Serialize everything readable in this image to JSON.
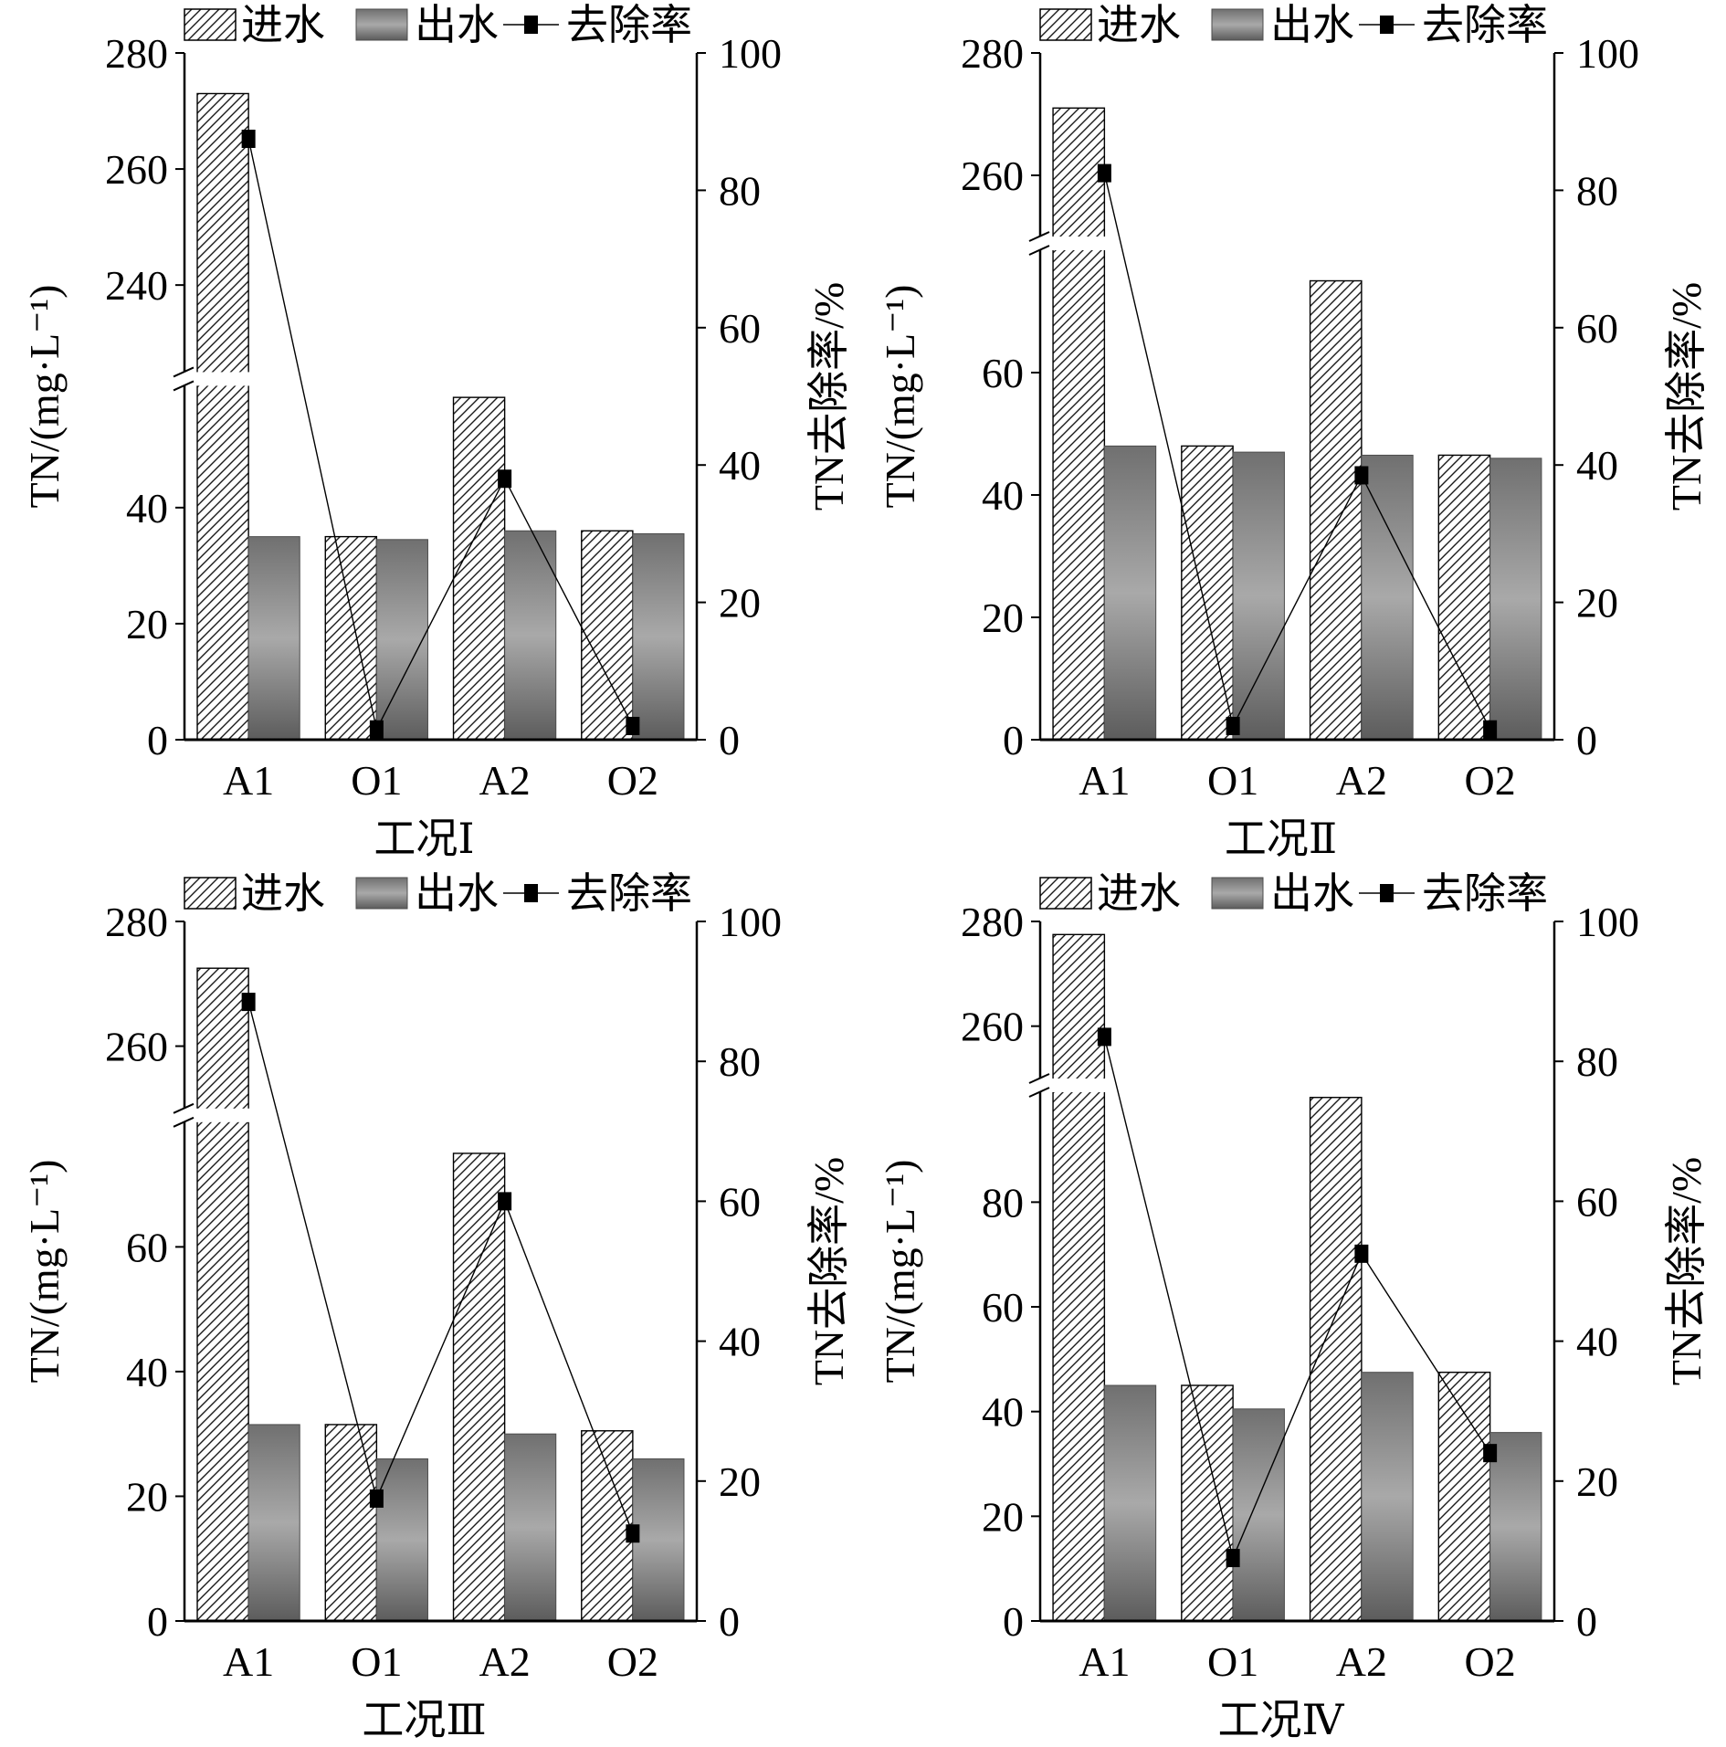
{
  "colors": {
    "hatch_line": "#1a1a1a",
    "effluent_top": "#707070",
    "effluent_mid": "#a9a9a9",
    "effluent_bottom": "#5c5c5c",
    "line": "#000000"
  },
  "chart_data": [
    {
      "type": "bar",
      "categories": [
        "A1",
        "O1",
        "A2",
        "O2"
      ],
      "series": [
        {
          "name": "进水",
          "type": "bar",
          "values": [
            273,
            35,
            59,
            36
          ]
        },
        {
          "name": "出水",
          "type": "bar",
          "values": [
            35,
            34.5,
            36,
            35.5
          ]
        },
        {
          "name": "去除率",
          "type": "line",
          "values": [
            87.5,
            1.5,
            38,
            2
          ]
        }
      ],
      "xlabel": "工况Ⅰ",
      "ylabel": "TN/(mg·L⁻¹)",
      "y2label": "TN去除率/%",
      "ylim_segments": [
        [
          0,
          61
        ],
        [
          225,
          280
        ]
      ],
      "yticks": [
        0,
        20,
        40,
        240,
        260,
        280
      ],
      "y2lim": [
        0,
        100
      ],
      "y2ticks": [
        0,
        20,
        40,
        60,
        80,
        100
      ],
      "legend": "top",
      "grid": false
    },
    {
      "type": "bar",
      "categories": [
        "A1",
        "O1",
        "A2",
        "O2"
      ],
      "series": [
        {
          "name": "进水",
          "type": "bar",
          "values": [
            271,
            48,
            75,
            46.5
          ]
        },
        {
          "name": "出水",
          "type": "bar",
          "values": [
            48,
            47,
            46.5,
            46
          ]
        },
        {
          "name": "去除率",
          "type": "line",
          "values": [
            82.5,
            2,
            38.5,
            1.5
          ]
        }
      ],
      "xlabel": "工况Ⅱ",
      "ylabel": "TN/(mg·L⁻¹)",
      "y2label": "TN去除率/%",
      "ylim_segments": [
        [
          0,
          80
        ],
        [
          250,
          280
        ]
      ],
      "yticks": [
        0,
        20,
        40,
        60,
        260,
        280
      ],
      "y2lim": [
        0,
        100
      ],
      "y2ticks": [
        0,
        20,
        40,
        60,
        80,
        100
      ],
      "legend": "top",
      "grid": false
    },
    {
      "type": "bar",
      "categories": [
        "A1",
        "O1",
        "A2",
        "O2"
      ],
      "series": [
        {
          "name": "进水",
          "type": "bar",
          "values": [
            272.5,
            31.5,
            75,
            30.5
          ]
        },
        {
          "name": "出水",
          "type": "bar",
          "values": [
            31.5,
            26,
            30,
            26
          ]
        },
        {
          "name": "去除率",
          "type": "line",
          "values": [
            88.5,
            17.5,
            60,
            12.5
          ]
        }
      ],
      "xlabel": "工况Ⅲ",
      "ylabel": "TN/(mg·L⁻¹)",
      "y2label": "TN去除率/%",
      "ylim_segments": [
        [
          0,
          80
        ],
        [
          250,
          280
        ]
      ],
      "yticks": [
        0,
        20,
        40,
        60,
        260,
        280
      ],
      "y2lim": [
        0,
        100
      ],
      "y2ticks": [
        0,
        20,
        40,
        60,
        80,
        100
      ],
      "legend": "top",
      "grid": false
    },
    {
      "type": "bar",
      "categories": [
        "A1",
        "O1",
        "A2",
        "O2"
      ],
      "series": [
        {
          "name": "进水",
          "type": "bar",
          "values": [
            277.5,
            45,
            100,
            47.5
          ]
        },
        {
          "name": "出水",
          "type": "bar",
          "values": [
            45,
            40.5,
            47.5,
            36
          ]
        },
        {
          "name": "去除率",
          "type": "line",
          "values": [
            83.5,
            9,
            52.5,
            24
          ]
        }
      ],
      "xlabel": "工况Ⅳ",
      "ylabel": "TN/(mg·L⁻¹)",
      "y2label": "TN去除率/%",
      "ylim_segments": [
        [
          0,
          101
        ],
        [
          250,
          280
        ]
      ],
      "yticks": [
        0,
        20,
        40,
        60,
        80,
        260,
        280
      ],
      "y2lim": [
        0,
        100
      ],
      "y2ticks": [
        0,
        20,
        40,
        60,
        80,
        100
      ],
      "legend": "top",
      "grid": false
    }
  ]
}
